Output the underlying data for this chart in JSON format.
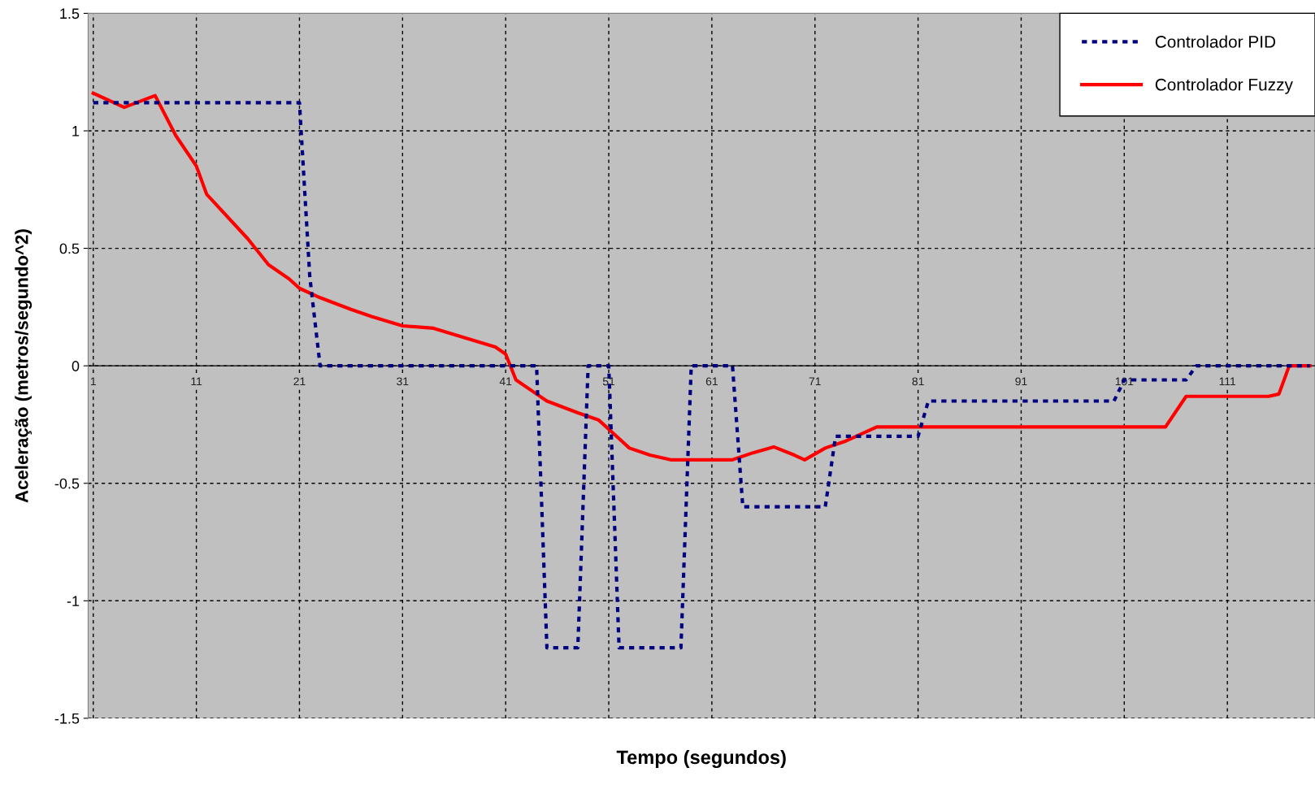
{
  "chart_data": {
    "type": "line",
    "xlabel": "Tempo (segundos)",
    "ylabel": "Aceleração (metros/segundo^2)",
    "xlim": [
      0.5,
      119.5
    ],
    "xticks": [
      1,
      11,
      21,
      31,
      41,
      51,
      61,
      71,
      81,
      91,
      101,
      111
    ],
    "ylim": [
      -1.5,
      1.5
    ],
    "yticks": [
      -1.5,
      -1,
      -0.5,
      0,
      0.5,
      1,
      1.5
    ],
    "grid": true,
    "legend": "top right",
    "series": [
      {
        "name": "Controlador PID",
        "color": "#000080",
        "line_style": "dashed",
        "x": [
          1,
          21,
          22,
          23,
          44,
          45,
          48,
          49,
          51,
          52,
          58,
          59,
          63,
          64,
          72,
          73,
          81,
          82,
          100,
          101,
          107,
          108,
          119
        ],
        "values": [
          1.12,
          1.12,
          0.38,
          0,
          0,
          -1.2,
          -1.2,
          0,
          0,
          -1.2,
          -1.2,
          0,
          0,
          -0.6,
          -0.6,
          -0.3,
          -0.3,
          -0.15,
          -0.15,
          -0.06,
          -0.06,
          0,
          0
        ]
      },
      {
        "name": "Controlador Fuzzy",
        "color": "#ff0000",
        "line_style": "solid",
        "x": [
          1,
          4,
          7,
          9,
          11,
          12,
          16,
          18,
          20,
          21,
          23,
          26,
          28,
          31,
          34,
          37,
          40,
          41,
          42,
          44,
          45,
          48,
          50,
          52,
          53,
          55,
          57,
          63,
          65,
          67,
          69,
          70,
          72,
          74,
          76,
          77,
          105,
          107,
          115,
          116,
          117,
          119
        ],
        "values": [
          1.16,
          1.1,
          1.15,
          0.98,
          0.85,
          0.73,
          0.54,
          0.43,
          0.37,
          0.33,
          0.29,
          0.24,
          0.21,
          0.17,
          0.16,
          0.12,
          0.08,
          0.05,
          -0.06,
          -0.12,
          -0.15,
          -0.2,
          -0.23,
          -0.31,
          -0.35,
          -0.38,
          -0.4,
          -0.4,
          -0.37,
          -0.345,
          -0.38,
          -0.4,
          -0.35,
          -0.32,
          -0.28,
          -0.26,
          -0.26,
          -0.13,
          -0.13,
          -0.12,
          0,
          0
        ]
      }
    ]
  }
}
